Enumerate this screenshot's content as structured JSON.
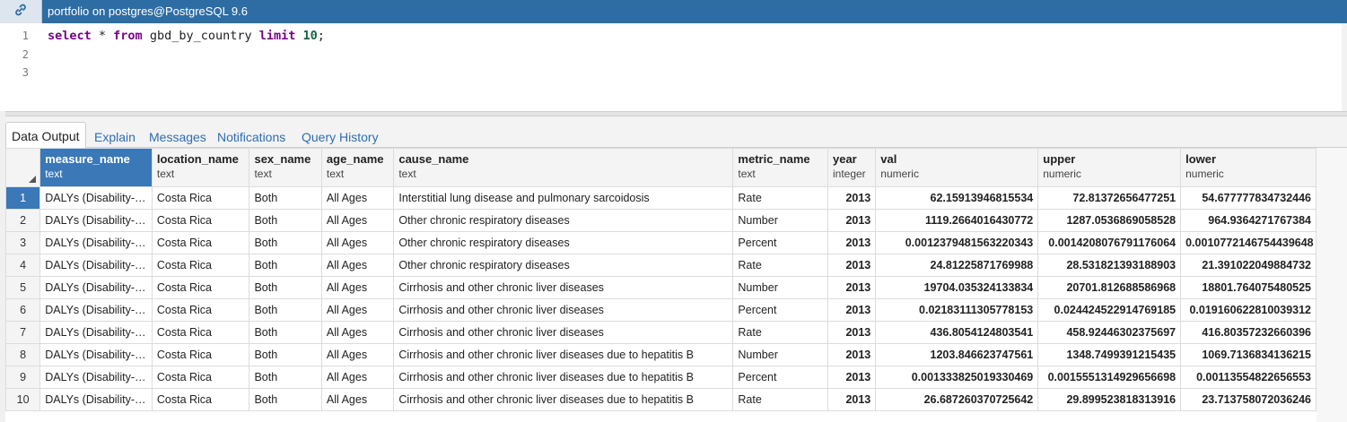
{
  "connection": {
    "icon": "link-icon",
    "label": "portfolio on postgres@PostgreSQL 9.6",
    "bar_color": "#2e6da4"
  },
  "editor": {
    "line_numbers": [
      "1",
      "2",
      "3"
    ],
    "query": {
      "kw_select": "select",
      "star": " * ",
      "kw_from": "from",
      "table": " gbd_by_country ",
      "kw_limit": "limit",
      "space": " ",
      "limit_value": "10",
      "semicolon": ";"
    }
  },
  "tabs": [
    {
      "label": "Data Output",
      "active": true
    },
    {
      "label": "Explain"
    },
    {
      "label": "Messages"
    },
    {
      "label": "Notifications"
    },
    {
      "label": "Query History"
    }
  ],
  "grid": {
    "columns": [
      {
        "name": "measure_name",
        "type": "text"
      },
      {
        "name": "location_name",
        "type": "text"
      },
      {
        "name": "sex_name",
        "type": "text"
      },
      {
        "name": "age_name",
        "type": "text"
      },
      {
        "name": "cause_name",
        "type": "text"
      },
      {
        "name": "metric_name",
        "type": "text"
      },
      {
        "name": "year",
        "type": "integer"
      },
      {
        "name": "val",
        "type": "numeric"
      },
      {
        "name": "upper",
        "type": "numeric"
      },
      {
        "name": "lower",
        "type": "numeric"
      }
    ],
    "rows": [
      {
        "n": "1",
        "measure": "DALYs (Disability-A...",
        "location": "Costa Rica",
        "sex": "Both",
        "age": "All Ages",
        "cause": "Interstitial lung disease and pulmonary sarcoidosis",
        "metric": "Rate",
        "year": "2013",
        "val": "62.15913946815534",
        "upper": "72.81372656477251",
        "lower": "54.677777834732446"
      },
      {
        "n": "2",
        "measure": "DALYs (Disability-A...",
        "location": "Costa Rica",
        "sex": "Both",
        "age": "All Ages",
        "cause": "Other chronic respiratory diseases",
        "metric": "Number",
        "year": "2013",
        "val": "1119.2664016430772",
        "upper": "1287.0536869058528",
        "lower": "964.9364271767384"
      },
      {
        "n": "3",
        "measure": "DALYs (Disability-A...",
        "location": "Costa Rica",
        "sex": "Both",
        "age": "All Ages",
        "cause": "Other chronic respiratory diseases",
        "metric": "Percent",
        "year": "2013",
        "val": "0.0012379481563220343",
        "upper": "0.0014208076791176064",
        "lower": "0.0010772146754439648"
      },
      {
        "n": "4",
        "measure": "DALYs (Disability-A...",
        "location": "Costa Rica",
        "sex": "Both",
        "age": "All Ages",
        "cause": "Other chronic respiratory diseases",
        "metric": "Rate",
        "year": "2013",
        "val": "24.81225871769988",
        "upper": "28.531821393188903",
        "lower": "21.391022049884732"
      },
      {
        "n": "5",
        "measure": "DALYs (Disability-A...",
        "location": "Costa Rica",
        "sex": "Both",
        "age": "All Ages",
        "cause": "Cirrhosis and other chronic liver diseases",
        "metric": "Number",
        "year": "2013",
        "val": "19704.035324133834",
        "upper": "20701.812688586968",
        "lower": "18801.764075480525"
      },
      {
        "n": "6",
        "measure": "DALYs (Disability-A...",
        "location": "Costa Rica",
        "sex": "Both",
        "age": "All Ages",
        "cause": "Cirrhosis and other chronic liver diseases",
        "metric": "Percent",
        "year": "2013",
        "val": "0.02183111305778153",
        "upper": "0.024424522914769185",
        "lower": "0.019160622810039312"
      },
      {
        "n": "7",
        "measure": "DALYs (Disability-A...",
        "location": "Costa Rica",
        "sex": "Both",
        "age": "All Ages",
        "cause": "Cirrhosis and other chronic liver diseases",
        "metric": "Rate",
        "year": "2013",
        "val": "436.8054124803541",
        "upper": "458.92446302375697",
        "lower": "416.80357232660396"
      },
      {
        "n": "8",
        "measure": "DALYs (Disability-A...",
        "location": "Costa Rica",
        "sex": "Both",
        "age": "All Ages",
        "cause": "Cirrhosis and other chronic liver diseases due to hepatitis B",
        "metric": "Number",
        "year": "2013",
        "val": "1203.846623747561",
        "upper": "1348.7499391215435",
        "lower": "1069.7136834136215"
      },
      {
        "n": "9",
        "measure": "DALYs (Disability-A...",
        "location": "Costa Rica",
        "sex": "Both",
        "age": "All Ages",
        "cause": "Cirrhosis and other chronic liver diseases due to hepatitis B",
        "metric": "Percent",
        "year": "2013",
        "val": "0.001333825019330469",
        "upper": "0.0015551314929656698",
        "lower": "0.00113554822656553"
      },
      {
        "n": "10",
        "measure": "DALYs (Disability-A...",
        "location": "Costa Rica",
        "sex": "Both",
        "age": "All Ages",
        "cause": "Cirrhosis and other chronic liver diseases due to hepatitis B",
        "metric": "Rate",
        "year": "2013",
        "val": "26.687260370725642",
        "upper": "29.899523818313916",
        "lower": "23.713758072036246"
      }
    ],
    "selected_column": "measure_name",
    "selected_row": "1",
    "selection_color": "#3a78b8"
  }
}
